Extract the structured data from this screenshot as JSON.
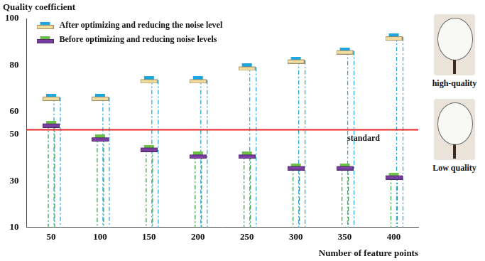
{
  "chart_data": {
    "type": "line",
    "x_label": "Number of feature points",
    "y_label": "Quality coefficient",
    "categories": [
      "50",
      "100",
      "150",
      "200",
      "250",
      "300",
      "350",
      "400"
    ],
    "series": [
      {
        "name": "After optimizing and reducing the noise level",
        "color": "#f2dca0",
        "marker": "rect",
        "line_style": "none",
        "values": [
          66,
          66,
          73.5,
          73.5,
          79,
          82,
          86,
          92
        ]
      },
      {
        "name": "Before optimizing and reducing noise levels",
        "color": "#7b3fa3",
        "marker": "rect",
        "line_style": "none",
        "values": [
          54.4,
          48.4,
          44,
          41,
          41,
          36,
          36,
          32
        ]
      }
    ],
    "ylim": [
      10,
      100
    ],
    "yticks": [
      10,
      30,
      50,
      60,
      80,
      100
    ],
    "grid": false,
    "legend": "upper left",
    "annotations": [
      {
        "text": "standard",
        "y": 52,
        "color": "#e8262a"
      }
    ],
    "images": [
      {
        "label": "high-quality"
      },
      {
        "label": "Low quality"
      }
    ]
  }
}
